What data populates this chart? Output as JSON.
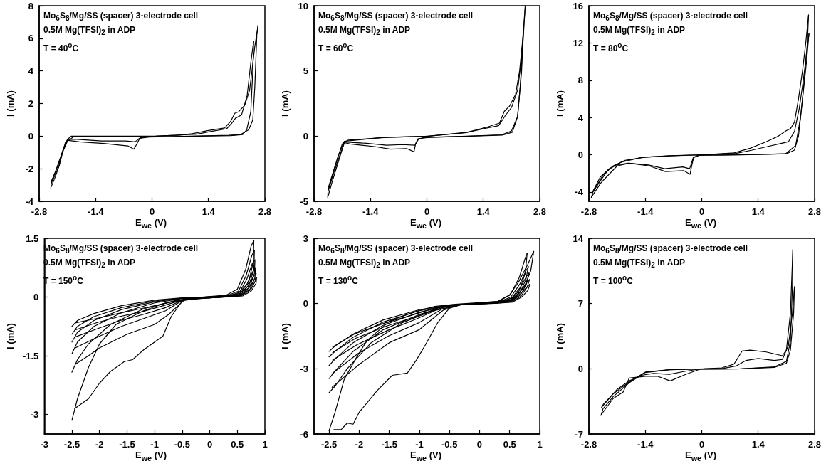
{
  "chart_data": [
    {
      "type": "line",
      "xlabel": "E$_{we}$ (V)",
      "ylabel": "I (mA)",
      "annotations": [
        "Mo$_{6}$S$_{8}$/Mg/SS (spacer) 3-electrode cell",
        "0.5M Mg(TFSI)$_{2}$ in ADP",
        "T = 40$^{o}$C"
      ],
      "xlim": [
        -2.8,
        2.8
      ],
      "xticks": [
        -2.8,
        -1.4,
        0,
        1.4,
        2.8
      ],
      "ylim": [
        -4,
        8
      ],
      "yticks": [
        -4,
        -2,
        0,
        2,
        4,
        6,
        8
      ],
      "series": [
        {
          "color": "#000000",
          "x": [
            -2.51,
            -2.5,
            -2.4,
            -2.2,
            -2.1,
            -2.0,
            -1.0,
            0.05,
            0.6,
            1.0,
            1.4,
            1.8,
            1.95,
            2.05,
            2.15,
            2.3,
            2.42,
            2.48,
            2.55,
            2.63
          ],
          "values": [
            -3.2,
            -2.8,
            -2.2,
            -0.8,
            -0.2,
            0,
            0,
            0,
            0.05,
            0.15,
            0.35,
            0.5,
            0.9,
            1.4,
            1.5,
            1.9,
            2.8,
            4,
            5.5,
            6.8
          ]
        },
        {
          "color": "#000000",
          "x": [
            2.63,
            2.6,
            2.55,
            2.5,
            2.4,
            2.2,
            1.9,
            1.0,
            -0.05,
            -0.3,
            -0.38,
            -0.45,
            -0.6,
            -1.2,
            -1.8,
            -2.1,
            -2.2,
            -2.3,
            -2.4,
            -2.5
          ],
          "values": [
            6.8,
            6.2,
            3,
            1,
            0.4,
            0.1,
            0.05,
            0,
            -0.05,
            -0.1,
            -0.5,
            -0.8,
            -0.6,
            -0.45,
            -0.35,
            -0.25,
            -0.8,
            -1.8,
            -2.5,
            -3.1
          ]
        },
        {
          "color": "#000000",
          "x": [
            -2.5,
            -2.48,
            -2.3,
            -2.15,
            -1.95,
            -0.9,
            0.1,
            1.1,
            1.5,
            1.85,
            1.98,
            2.07,
            2.22,
            2.36,
            2.45,
            2.52
          ],
          "values": [
            -2.9,
            -2.7,
            -1.6,
            -0.4,
            -0.05,
            -0.02,
            0,
            0.12,
            0.3,
            0.45,
            0.8,
            1.1,
            1.3,
            2.5,
            4.5,
            5.8
          ]
        },
        {
          "color": "#000000",
          "x": [
            2.52,
            2.5,
            2.45,
            2.35,
            2.25,
            1.95,
            1.1,
            -0.1,
            -0.32,
            -0.42,
            -0.65,
            -1.25,
            -1.85,
            -2.08,
            -2.22,
            -2.32,
            -2.49
          ],
          "values": [
            5.8,
            4,
            1.5,
            0.4,
            0.1,
            0.03,
            0,
            -0.06,
            -0.15,
            -0.35,
            -0.3,
            -0.3,
            -0.2,
            -0.2,
            -1.0,
            -1.9,
            -2.85
          ]
        }
      ]
    },
    {
      "type": "line",
      "xlabel": "E$_{we}$ (V)",
      "ylabel": "I (mA)",
      "annotations": [
        "Mo$_{6}$S$_{8}$/Mg/SS (spacer) 3-electrode cell",
        "0.5M Mg(TFSI)$_{2}$ in ADP",
        "T = 60$^{o}$C"
      ],
      "xlim": [
        -2.8,
        2.8
      ],
      "xticks": [
        -2.8,
        -1.4,
        0,
        1.4,
        2.8
      ],
      "ylim": [
        -5,
        10
      ],
      "yticks": [
        -5,
        0,
        5,
        10
      ],
      "series": [
        {
          "color": "#000000",
          "x": [
            -2.46,
            -2.45,
            -2.3,
            -2.1,
            -1.95,
            -1.0,
            0.05,
            1.0,
            1.5,
            1.8,
            1.92,
            2.05,
            2.2,
            2.3,
            2.38,
            2.44
          ],
          "values": [
            -4.7,
            -4,
            -2.5,
            -0.6,
            -0.3,
            -0.1,
            0,
            0.3,
            0.7,
            1.0,
            1.9,
            2.3,
            3.2,
            5,
            7.5,
            10
          ]
        },
        {
          "color": "#000000",
          "x": [
            2.44,
            2.4,
            2.32,
            2.25,
            2.1,
            1.85,
            1.0,
            -0.05,
            -0.2,
            -0.28,
            -0.32,
            -0.5,
            -0.9,
            -1.3,
            -1.9,
            -2.05,
            -2.2,
            -2.35,
            -2.45
          ],
          "values": [
            10,
            8,
            4,
            1.5,
            0.4,
            0.1,
            0,
            -0.1,
            -0.2,
            -0.6,
            -1.2,
            -0.95,
            -1.0,
            -0.8,
            -0.6,
            -0.5,
            -2,
            -3.5,
            -4.6
          ]
        },
        {
          "color": "#000000",
          "x": [
            -2.45,
            -2.4,
            -2.2,
            -2.05,
            -1.1,
            -0.05,
            0.95,
            1.45,
            1.78,
            1.95,
            2.1,
            2.25,
            2.35,
            2.4
          ],
          "values": [
            -4.2,
            -3.6,
            -1.5,
            -0.4,
            -0.1,
            -0.02,
            0.25,
            0.6,
            0.8,
            1.6,
            2.2,
            3.5,
            6,
            8.5
          ]
        },
        {
          "color": "#000000",
          "x": [
            2.4,
            2.35,
            2.25,
            2.12,
            1.87,
            0.95,
            0.05,
            -0.22,
            -0.3,
            -0.6,
            -1.0,
            -1.5,
            -2.04,
            -2.2,
            -2.35,
            -2.44
          ],
          "values": [
            8.5,
            5,
            1.5,
            0.3,
            0.08,
            -0.02,
            -0.1,
            -0.2,
            -0.7,
            -0.65,
            -0.7,
            -0.55,
            -0.45,
            -1.8,
            -3.2,
            -4.1
          ]
        }
      ]
    },
    {
      "type": "line",
      "xlabel": "E$_{we}$ (V)",
      "ylabel": "I (mA)",
      "annotations": [
        "Mo$_{6}$S$_{8}$/Mg/SS (spacer) 3-electrode cell",
        "0.5M Mg(TFSI)$_{2}$ in ADP",
        "T = 80$^{o}$C"
      ],
      "xlim": [
        -2.8,
        2.8
      ],
      "xticks": [
        -2.8,
        -1.4,
        0,
        1.4,
        2.8
      ],
      "ylim": [
        -5,
        16
      ],
      "yticks": [
        -4,
        0,
        4,
        8,
        12,
        16
      ],
      "series": [
        {
          "color": "#000000",
          "x": [
            -2.74,
            -2.7,
            -2.5,
            -2.3,
            -2.0,
            -1.5,
            -0.8,
            0.05,
            0.8,
            1.2,
            1.6,
            1.9,
            2.1,
            2.2,
            2.3,
            2.4,
            2.5,
            2.58,
            2.65
          ],
          "values": [
            -4.6,
            -4,
            -2.7,
            -1.5,
            -0.8,
            -0.3,
            -0.1,
            0,
            0.2,
            0.7,
            1.4,
            2.0,
            2.6,
            2.8,
            3.5,
            6,
            9,
            12,
            15
          ]
        },
        {
          "color": "#000000",
          "x": [
            2.65,
            2.62,
            2.5,
            2.4,
            2.3,
            2.1,
            1.2,
            -0.05,
            -0.2,
            -0.25,
            -0.29,
            -0.45,
            -0.9,
            -1.3,
            -1.8,
            -2.1,
            -2.3,
            -2.5,
            -2.73
          ],
          "values": [
            15,
            12,
            6,
            2,
            0.5,
            0.1,
            0,
            -0.05,
            -0.3,
            -1.2,
            -2.1,
            -1.7,
            -1.8,
            -1.2,
            -0.9,
            -1.2,
            -2.1,
            -3,
            -4.5
          ]
        },
        {
          "color": "#000000",
          "x": [
            -2.72,
            -2.65,
            -2.45,
            -2.2,
            -1.9,
            -1.4,
            -0.7,
            0.1,
            0.85,
            1.25,
            1.65,
            1.95,
            2.15,
            2.3,
            2.42,
            2.52,
            2.66
          ],
          "values": [
            -4.1,
            -3.6,
            -2.2,
            -1.2,
            -0.6,
            -0.25,
            -0.1,
            0,
            0.15,
            0.5,
            0.9,
            1.2,
            1.4,
            2.5,
            5,
            8,
            13
          ]
        },
        {
          "color": "#000000",
          "x": [
            2.66,
            2.6,
            2.45,
            2.33,
            2.08,
            1.1,
            -0.1,
            -0.21,
            -0.3,
            -0.47,
            -0.92,
            -1.32,
            -1.82,
            -2.12,
            -2.32,
            -2.52,
            -2.71
          ],
          "values": [
            13,
            10,
            4,
            1,
            0.1,
            0,
            -0.05,
            -0.3,
            -1.5,
            -1.3,
            -1.5,
            -1.1,
            -0.9,
            -1.1,
            -1.6,
            -2.4,
            -4.0
          ]
        }
      ]
    },
    {
      "type": "line",
      "xlabel": "E$_{we}$ (V)",
      "ylabel": "I (mA)",
      "annotations": [
        "Mo$_{6}$S$_{8}$/Mg/SS (spacer) 3-electrode cell",
        "0.5M Mg(TFSI)$_{2}$ in ADP",
        "T = 150$^{o}$C"
      ],
      "xlim": [
        -3,
        1
      ],
      "xticks": [
        -3,
        -2.5,
        -2,
        -1.5,
        -1,
        -0.5,
        0,
        0.5,
        1
      ],
      "ylim": [
        -3.5,
        1.5
      ],
      "yticks": [
        -3,
        -1.5,
        0,
        1.5
      ],
      "series": [
        {
          "color": "#000000",
          "x": [
            -2.5,
            -2.4,
            -2.2,
            -2.0,
            -1.7,
            -1.2,
            -0.8,
            -0.3,
            0.3,
            0.5,
            0.65,
            0.75,
            0.8
          ],
          "values": [
            -3.15,
            -2.6,
            -1.8,
            -1.2,
            -0.7,
            -0.35,
            -0.15,
            -0.02,
            0.05,
            0.2,
            0.7,
            1.3,
            1.45
          ]
        },
        {
          "color": "#000000",
          "x": [
            0.8,
            0.79,
            0.7,
            0.5,
            0.2,
            -0.2,
            -0.5,
            -0.7,
            -0.85,
            -1.0,
            -1.2,
            -1.4,
            -1.55,
            -1.8,
            -2.0,
            -2.2,
            -2.45
          ],
          "values": [
            1.45,
            0.9,
            0.35,
            0.08,
            0.01,
            -0.02,
            -0.1,
            -0.5,
            -1.0,
            -1.15,
            -1.35,
            -1.6,
            -1.65,
            -1.9,
            -2.2,
            -2.6,
            -2.85
          ]
        },
        {
          "color": "#000000",
          "x": [
            -2.5,
            -2.4,
            -2.2,
            -1.8,
            -1.2,
            -0.6,
            0.32,
            0.52,
            0.66,
            0.76,
            0.81
          ],
          "values": [
            -1.92,
            -1.6,
            -1.2,
            -0.7,
            -0.3,
            -0.08,
            0.04,
            0.15,
            0.55,
            1.05,
            1.2
          ]
        },
        {
          "color": "#000000",
          "x": [
            0.81,
            0.8,
            0.71,
            0.52,
            0.22,
            -0.45,
            -0.75,
            -1.0,
            -1.5,
            -2.0,
            -2.2,
            -2.44
          ],
          "values": [
            1.2,
            0.7,
            0.3,
            0.06,
            0,
            -0.06,
            -0.45,
            -0.7,
            -0.95,
            -1.3,
            -1.5,
            -1.72
          ]
        },
        {
          "color": "#000000",
          "x": [
            -2.5,
            -2.4,
            -2.1,
            -1.6,
            -1.0,
            -0.5,
            0.34,
            0.54,
            0.67,
            0.77,
            0.82
          ],
          "values": [
            -1.45,
            -1.15,
            -0.75,
            -0.4,
            -0.15,
            -0.04,
            0.03,
            0.12,
            0.45,
            0.85,
            0.95
          ]
        },
        {
          "color": "#000000",
          "x": [
            0.82,
            0.81,
            0.72,
            0.54,
            0.24,
            -0.48,
            -0.8,
            -1.2,
            -1.6,
            -2.0,
            -2.44
          ],
          "values": [
            0.95,
            0.6,
            0.25,
            0.05,
            0,
            -0.07,
            -0.35,
            -0.55,
            -0.75,
            -1.0,
            -1.3
          ]
        },
        {
          "color": "#000000",
          "x": [
            -2.5,
            -2.4,
            -2.1,
            -1.6,
            -1.0,
            -0.5,
            0.36,
            0.56,
            0.68,
            0.78,
            0.83
          ],
          "values": [
            -1.15,
            -0.9,
            -0.6,
            -0.32,
            -0.12,
            -0.03,
            0.03,
            0.1,
            0.35,
            0.65,
            0.75
          ]
        },
        {
          "color": "#000000",
          "x": [
            0.83,
            0.82,
            0.73,
            0.56,
            0.26,
            -0.46,
            -0.82,
            -1.22,
            -1.62,
            -2.02,
            -2.44
          ],
          "values": [
            0.75,
            0.5,
            0.2,
            0.04,
            0,
            -0.06,
            -0.28,
            -0.45,
            -0.6,
            -0.8,
            -1.02
          ]
        },
        {
          "color": "#000000",
          "x": [
            -2.5,
            -2.4,
            -2.1,
            -1.6,
            -1.0,
            -0.5,
            0.38,
            0.58,
            0.69,
            0.79,
            0.84
          ],
          "values": [
            -0.95,
            -0.75,
            -0.5,
            -0.27,
            -0.1,
            -0.03,
            0.02,
            0.08,
            0.28,
            0.52,
            0.6
          ]
        },
        {
          "color": "#000000",
          "x": [
            0.84,
            0.83,
            0.74,
            0.58,
            0.28,
            -0.44,
            -0.84,
            -1.24,
            -1.64,
            -2.04,
            -2.44
          ],
          "values": [
            0.6,
            0.42,
            0.18,
            0.04,
            0,
            -0.05,
            -0.22,
            -0.38,
            -0.5,
            -0.65,
            -0.84
          ]
        },
        {
          "color": "#000000",
          "x": [
            -2.5,
            -2.4,
            -2.1,
            -1.6,
            -1.0,
            -0.5,
            0.4,
            0.6,
            0.7,
            0.8,
            0.85
          ],
          "values": [
            -0.75,
            -0.6,
            -0.42,
            -0.22,
            -0.08,
            -0.02,
            0.02,
            0.07,
            0.22,
            0.42,
            0.5
          ]
        },
        {
          "color": "#000000",
          "x": [
            0.85,
            0.84,
            0.75,
            0.6,
            0.3,
            -0.42,
            -0.86,
            -1.26,
            -1.66,
            -2.06,
            -2.44
          ],
          "values": [
            0.5,
            0.35,
            0.15,
            0.03,
            0,
            -0.04,
            -0.18,
            -0.3,
            -0.42,
            -0.55,
            -0.66
          ]
        }
      ]
    },
    {
      "type": "line",
      "xlabel": "E$_{we}$ (V)",
      "ylabel": "I (mA)",
      "annotations": [
        "Mo$_{6}$S$_{8}$/Mg/SS (spacer) 3-electrode cell",
        "0.5M Mg(TFSI)$_{2}$ in ADP",
        "T = 130$^{o}$C"
      ],
      "xlim": [
        -2.75,
        1
      ],
      "xticks": [
        -2.5,
        -2,
        -1.5,
        -1,
        -0.5,
        0,
        0.5,
        1
      ],
      "ylim": [
        -6,
        3
      ],
      "yticks": [
        -6,
        -3,
        0,
        3
      ],
      "series": [
        {
          "color": "#000000",
          "x": [
            -2.5,
            -2.4,
            -2.25,
            -2.05,
            -1.87,
            -1.49,
            -1.1,
            -0.74,
            -0.4,
            0.3,
            0.5,
            0.65,
            0.8,
            0.9
          ],
          "values": [
            -5.85,
            -5.0,
            -3.5,
            -2.5,
            -1.7,
            -0.8,
            -0.4,
            -0.13,
            -0.03,
            0.1,
            0.4,
            1.0,
            1.8,
            2.4
          ]
        },
        {
          "color": "#000000",
          "x": [
            0.9,
            0.85,
            0.75,
            0.6,
            0.3,
            -0.3,
            -0.5,
            -0.7,
            -0.9,
            -1.05,
            -1.2,
            -1.45,
            -1.7,
            -2.0,
            -2.1,
            -2.2,
            -2.3,
            -2.42
          ],
          "values": [
            2.4,
            1.5,
            0.8,
            0.3,
            0.05,
            -0.05,
            -0.2,
            -0.9,
            -1.9,
            -2.6,
            -3.2,
            -3.3,
            -4.0,
            -5.0,
            -5.55,
            -5.5,
            -5.8,
            -5.8
          ]
        },
        {
          "color": "#000000",
          "x": [
            -2.5,
            -2.4,
            -2.2,
            -1.8,
            -1.3,
            -0.8,
            -0.3,
            0.31,
            0.51,
            0.66,
            0.76,
            0.79
          ],
          "values": [
            -4.1,
            -3.8,
            -3.0,
            -1.8,
            -0.9,
            -0.35,
            -0.05,
            0.1,
            0.4,
            1.2,
            2.1,
            2.3
          ]
        },
        {
          "color": "#000000",
          "x": [
            0.79,
            0.76,
            0.66,
            0.51,
            0.21,
            -0.32,
            -0.6,
            -1.0,
            -1.5,
            -2.0,
            -2.3,
            -2.45
          ],
          "values": [
            2.3,
            1.4,
            0.6,
            0.15,
            0.02,
            -0.06,
            -0.3,
            -1.2,
            -1.8,
            -2.8,
            -3.5,
            -3.85
          ]
        },
        {
          "color": "#000000",
          "x": [
            -2.5,
            -2.4,
            -2.1,
            -1.6,
            -1.0,
            -0.5,
            0.32,
            0.52,
            0.67,
            0.77,
            0.81
          ],
          "values": [
            -3.45,
            -3.1,
            -2.2,
            -1.2,
            -0.5,
            -0.1,
            0.08,
            0.3,
            0.9,
            1.5,
            1.7
          ]
        },
        {
          "color": "#000000",
          "x": [
            0.81,
            0.77,
            0.67,
            0.52,
            0.22,
            -0.31,
            -0.62,
            -1.02,
            -1.52,
            -2.02,
            -2.44
          ],
          "values": [
            1.7,
            1.1,
            0.5,
            0.12,
            0.02,
            -0.05,
            -0.25,
            -0.9,
            -1.5,
            -2.3,
            -3.2
          ]
        },
        {
          "color": "#000000",
          "x": [
            -2.5,
            -2.4,
            -2.1,
            -1.6,
            -1.0,
            -0.5,
            0.33,
            0.53,
            0.68,
            0.78,
            0.82
          ],
          "values": [
            -2.85,
            -2.55,
            -1.8,
            -1.0,
            -0.4,
            -0.08,
            0.06,
            0.25,
            0.75,
            1.25,
            1.4
          ]
        },
        {
          "color": "#000000",
          "x": [
            0.82,
            0.78,
            0.68,
            0.53,
            0.23,
            -0.33,
            -0.64,
            -1.04,
            -1.54,
            -2.04,
            -2.44
          ],
          "values": [
            1.4,
            0.9,
            0.4,
            0.1,
            0.02,
            -0.04,
            -0.2,
            -0.7,
            -1.25,
            -1.9,
            -2.6
          ]
        },
        {
          "color": "#000000",
          "x": [
            -2.5,
            -2.4,
            -2.1,
            -1.6,
            -1.0,
            -0.5,
            0.34,
            0.54,
            0.69,
            0.79,
            0.83
          ],
          "values": [
            -2.45,
            -2.2,
            -1.55,
            -0.85,
            -0.33,
            -0.07,
            0.05,
            0.2,
            0.6,
            1.0,
            1.1
          ]
        },
        {
          "color": "#000000",
          "x": [
            0.83,
            0.79,
            0.69,
            0.54,
            0.24,
            -0.34,
            -0.66,
            -1.06,
            -1.56,
            -2.06,
            -2.44
          ],
          "values": [
            1.1,
            0.75,
            0.35,
            0.08,
            0.01,
            -0.04,
            -0.17,
            -0.6,
            -1.05,
            -1.6,
            -2.25
          ]
        },
        {
          "color": "#000000",
          "x": [
            -2.5,
            -2.4,
            -2.1,
            -1.6,
            -1.0,
            -0.5,
            0.35,
            0.55,
            0.7,
            0.8,
            0.84
          ],
          "values": [
            -2.2,
            -1.95,
            -1.4,
            -0.75,
            -0.28,
            -0.06,
            0.04,
            0.17,
            0.5,
            0.8,
            0.9
          ]
        },
        {
          "color": "#000000",
          "x": [
            0.84,
            0.8,
            0.7,
            0.55,
            0.25,
            -0.36,
            -0.68,
            -1.08,
            -1.58,
            -2.08,
            -2.44
          ],
          "values": [
            0.9,
            0.6,
            0.3,
            0.07,
            0.01,
            -0.03,
            -0.15,
            -0.5,
            -0.9,
            -1.4,
            -2.0
          ]
        }
      ]
    },
    {
      "type": "line",
      "xlabel": "E$_{we}$ (V)",
      "ylabel": "I (mA)",
      "annotations": [
        "Mo$_{6}$S$_{8}$/Mg/SS (spacer) 3-electrode cell",
        "0.5M Mg(TFSI)$_{2}$ in ADP",
        "T = 100$^{o}$C"
      ],
      "xlim": [
        -2.8,
        2.8
      ],
      "xticks": [
        -2.8,
        -1.4,
        0,
        1.4,
        2.8
      ],
      "ylim": [
        -7,
        14
      ],
      "yticks": [
        -7,
        0,
        7,
        14
      ],
      "series": [
        {
          "color": "#000000",
          "x": [
            -2.5,
            -2.45,
            -2.2,
            -1.8,
            -1.4,
            -0.8,
            0.05,
            0.5,
            0.8,
            1.0,
            1.2,
            1.6,
            2.0,
            2.1,
            2.2,
            2.26
          ],
          "values": [
            -5.0,
            -4.3,
            -3,
            -1.5,
            -0.4,
            -0.1,
            0,
            0.1,
            0.5,
            1.9,
            2.0,
            1.8,
            1.4,
            2,
            6,
            12.8
          ]
        },
        {
          "color": "#000000",
          "x": [
            2.26,
            2.25,
            2.2,
            2.1,
            1.8,
            1.0,
            -0.05,
            -0.4,
            -0.78,
            -1.1,
            -1.4,
            -1.8,
            -1.95,
            -2.2,
            -2.49
          ],
          "values": [
            12.8,
            9,
            3,
            0.8,
            0.2,
            0,
            -0.05,
            -0.6,
            -1.3,
            -0.8,
            -0.8,
            -1.0,
            -2.5,
            -3.2,
            -4.9
          ]
        },
        {
          "color": "#000000",
          "x": [
            -2.49,
            -2.44,
            -2.2,
            -1.8,
            -1.4,
            -0.8,
            0.1,
            0.55,
            0.85,
            1.1,
            1.4,
            1.8,
            2.0,
            2.15,
            2.25,
            2.3
          ],
          "values": [
            -4.2,
            -3.8,
            -2.7,
            -1.4,
            -0.35,
            -0.1,
            0,
            0.05,
            0.3,
            0.9,
            1.1,
            0.9,
            1.0,
            2.5,
            6,
            8.8
          ]
        },
        {
          "color": "#000000",
          "x": [
            2.3,
            2.28,
            2.2,
            2.1,
            1.8,
            0.95,
            -0.1,
            -0.45,
            -0.8,
            -1.2,
            -1.5,
            -1.8,
            -2.1,
            -2.48
          ],
          "values": [
            8.8,
            6,
            2,
            0.6,
            0.15,
            0,
            -0.05,
            -0.3,
            -0.6,
            -0.5,
            -0.7,
            -1.3,
            -2.2,
            -4.1
          ]
        }
      ]
    }
  ]
}
